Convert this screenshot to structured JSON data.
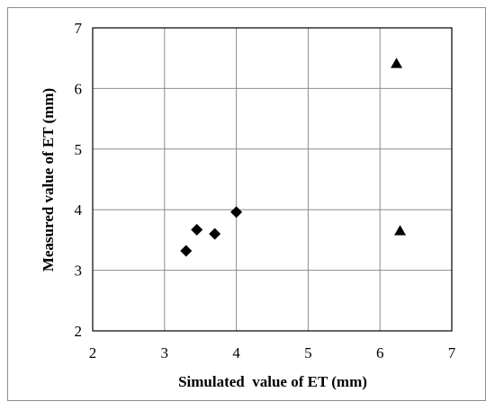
{
  "chart_data": {
    "type": "scatter",
    "title": "",
    "xlabel": "Simulated  value of ET (mm)",
    "ylabel": "Measured value of ET (mm)",
    "xlim": [
      2,
      7
    ],
    "ylim": [
      2,
      7
    ],
    "xticks": [
      "2",
      "3",
      "4",
      "5",
      "6",
      "7"
    ],
    "yticks": [
      "2",
      "3",
      "4",
      "5",
      "6",
      "7"
    ],
    "grid": true,
    "legend": "none",
    "series": [
      {
        "marker": "diamond",
        "color": "#000000",
        "points": [
          {
            "x": 3.3,
            "y": 3.32
          },
          {
            "x": 3.45,
            "y": 3.67
          },
          {
            "x": 3.7,
            "y": 3.6
          },
          {
            "x": 4.0,
            "y": 3.96
          }
        ]
      },
      {
        "marker": "triangle",
        "color": "#000000",
        "points": [
          {
            "x": 6.23,
            "y": 6.41
          },
          {
            "x": 6.28,
            "y": 3.65
          }
        ]
      }
    ]
  }
}
